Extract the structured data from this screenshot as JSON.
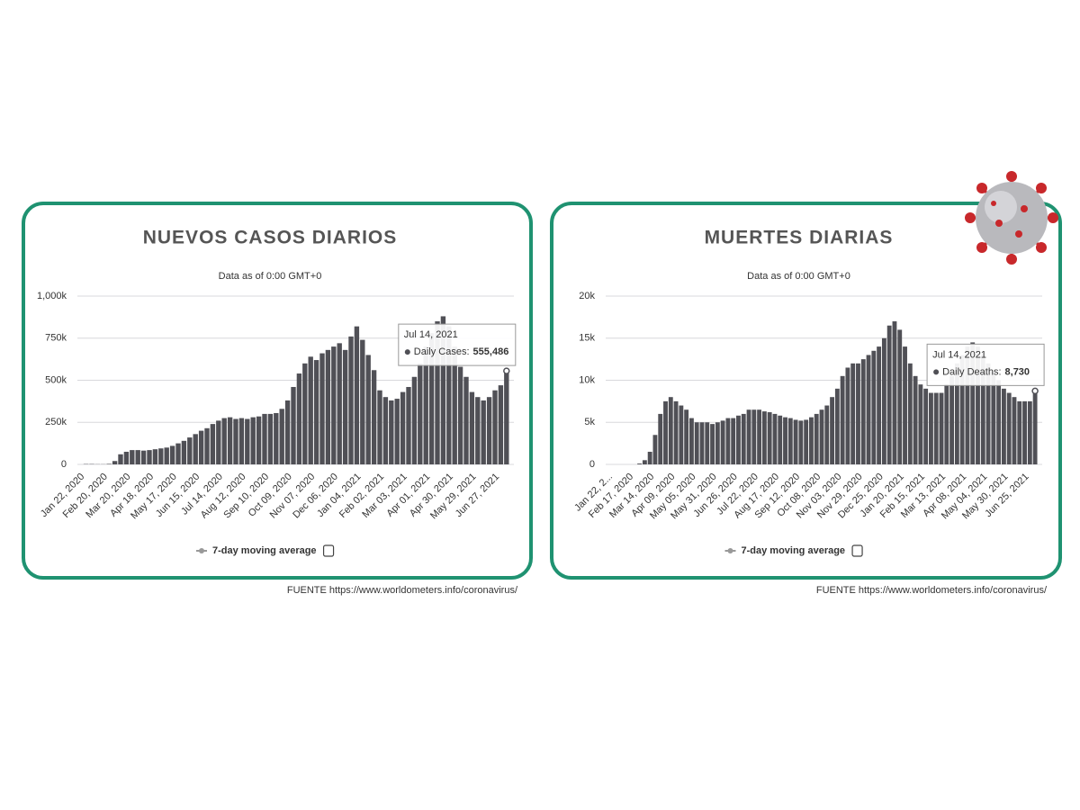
{
  "chart_data": [
    {
      "type": "bar",
      "title": "NUEVOS CASOS DIARIOS",
      "subtitle": "Data as of 0:00 GMT+0",
      "categories": [
        "Jan 22, 2020",
        null,
        null,
        null,
        "Feb 20, 2020",
        null,
        null,
        null,
        "Mar 20, 2020",
        null,
        null,
        null,
        "Apr 18, 2020",
        null,
        null,
        null,
        "May 17, 2020",
        null,
        null,
        null,
        "Jun 15, 2020",
        null,
        null,
        null,
        "Jul 14, 2020",
        null,
        null,
        null,
        "Aug 12, 2020",
        null,
        null,
        null,
        "Sep 10, 2020",
        null,
        null,
        null,
        "Oct 09, 2020",
        null,
        null,
        null,
        "Nov 07, 2020",
        null,
        null,
        null,
        "Dec 06, 2020",
        null,
        null,
        null,
        "Jan 04, 2021",
        null,
        null,
        null,
        "Feb 02, 2021",
        null,
        null,
        null,
        "Mar 03, 2021",
        null,
        null,
        null,
        "Apr 01, 2021",
        null,
        null,
        null,
        "Apr 30, 2021",
        null,
        null,
        null,
        "May 29, 2021",
        null,
        null,
        null,
        "Jun 27, 2021",
        null,
        null
      ],
      "values": [
        0,
        2000,
        2000,
        1000,
        1000,
        3000,
        20000,
        60000,
        75000,
        85000,
        85000,
        82000,
        85000,
        90000,
        95000,
        100000,
        110000,
        125000,
        140000,
        160000,
        180000,
        200000,
        215000,
        240000,
        260000,
        275000,
        280000,
        270000,
        275000,
        270000,
        280000,
        285000,
        300000,
        300000,
        305000,
        330000,
        380000,
        460000,
        540000,
        600000,
        640000,
        620000,
        660000,
        680000,
        700000,
        720000,
        680000,
        760000,
        820000,
        740000,
        650000,
        560000,
        440000,
        400000,
        380000,
        390000,
        430000,
        460000,
        520000,
        600000,
        700000,
        780000,
        850000,
        880000,
        820000,
        700000,
        580000,
        520000,
        430000,
        400000,
        380000,
        400000,
        440000,
        470000,
        555486
      ],
      "color": "#505056",
      "ylim": [
        0,
        1000000
      ],
      "yticks": [
        0,
        {
          "value": 250000,
          "label": "250k"
        },
        {
          "value": 500000,
          "label": "500k"
        },
        {
          "value": 750000,
          "label": "750k"
        },
        {
          "value": 1000000,
          "label": "1,000k"
        }
      ],
      "grid": true,
      "legend": [
        "7-day moving average"
      ],
      "tooltip": {
        "title": "Jul 14, 2021",
        "name": "Daily Cases:",
        "value": 555486,
        "label": "555,486"
      },
      "source": "FUENTE https://www.worldometers.info/coronavirus/"
    },
    {
      "type": "bar",
      "title": "MUERTES DIARIAS",
      "subtitle": "Data as of 0:00 GMT+0",
      "categories": [
        "Jan 22, 2...",
        null,
        null,
        null,
        "Feb 17, 2020",
        null,
        null,
        null,
        "Mar 14, 2020",
        null,
        null,
        null,
        "Apr 09, 2020",
        null,
        null,
        null,
        "May 05, 2020",
        null,
        null,
        null,
        "May 31, 2020",
        null,
        null,
        null,
        "Jun 26, 2020",
        null,
        null,
        null,
        "Jul 22, 2020",
        null,
        null,
        null,
        "Aug 17, 2020",
        null,
        null,
        null,
        "Sep 12, 2020",
        null,
        null,
        null,
        "Oct 08, 2020",
        null,
        null,
        null,
        "Nov 03, 2020",
        null,
        null,
        null,
        "Nov 29, 2020",
        null,
        null,
        null,
        "Dec 25, 2020",
        null,
        null,
        null,
        "Jan 20, 2021",
        null,
        null,
        null,
        "Feb 15, 2021",
        null,
        null,
        null,
        "Mar 13, 2021",
        null,
        null,
        null,
        "Apr 08, 2021",
        null,
        null,
        null,
        "May 04, 2021",
        null,
        null,
        null,
        "May 30, 2021",
        null,
        null,
        null,
        "Jun 25, 2021",
        null,
        null
      ],
      "values": [
        0,
        0,
        0,
        0,
        0,
        0,
        100,
        500,
        1500,
        3500,
        6000,
        7500,
        8000,
        7500,
        7000,
        6500,
        5500,
        5000,
        5000,
        5000,
        4800,
        5000,
        5200,
        5500,
        5500,
        5800,
        6000,
        6500,
        6500,
        6500,
        6300,
        6200,
        6000,
        5800,
        5600,
        5500,
        5300,
        5200,
        5300,
        5600,
        6000,
        6500,
        7000,
        8000,
        9000,
        10500,
        11500,
        12000,
        12000,
        12500,
        13000,
        13500,
        14000,
        15000,
        16500,
        17000,
        16000,
        14000,
        12000,
        10500,
        9500,
        9000,
        8500,
        8500,
        8500,
        9500,
        10500,
        12000,
        13000,
        14000,
        14500,
        14000,
        13000,
        12000,
        11000,
        10000,
        9000,
        8500,
        8000,
        7500,
        7500,
        7500,
        8730
      ],
      "color": "#505056",
      "ylim": [
        0,
        20000
      ],
      "yticks": [
        0,
        {
          "value": 5000,
          "label": "5k"
        },
        {
          "value": 10000,
          "label": "10k"
        },
        {
          "value": 15000,
          "label": "15k"
        },
        {
          "value": 20000,
          "label": "20k"
        }
      ],
      "grid": true,
      "legend": [
        "7-day moving average"
      ],
      "tooltip": {
        "title": "Jul 14, 2021",
        "name": "Daily Deaths:",
        "value": 8730,
        "label": "8,730"
      },
      "source": "FUENTE https://www.worldometers.info/coronavirus/"
    }
  ]
}
